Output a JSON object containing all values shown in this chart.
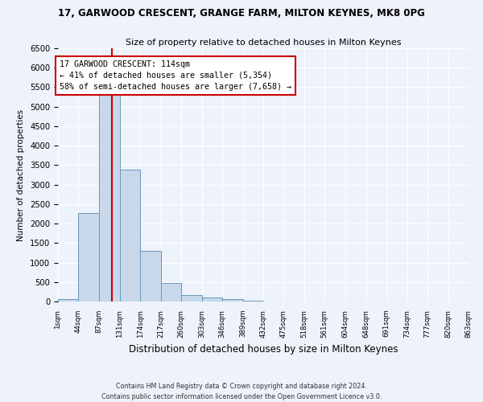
{
  "title1": "17, GARWOOD CRESCENT, GRANGE FARM, MILTON KEYNES, MK8 0PG",
  "title2": "Size of property relative to detached houses in Milton Keynes",
  "xlabel": "Distribution of detached houses by size in Milton Keynes",
  "ylabel": "Number of detached properties",
  "footer1": "Contains HM Land Registry data © Crown copyright and database right 2024.",
  "footer2": "Contains public sector information licensed under the Open Government Licence v3.0.",
  "bar_color": "#c8d8ea",
  "bar_edge_color": "#6699bb",
  "property_size": 114,
  "property_line_color": "#cc0000",
  "annotation_line1": "17 GARWOOD CRESCENT: 114sqm",
  "annotation_line2": "← 41% of detached houses are smaller (5,354)",
  "annotation_line3": "58% of semi-detached houses are larger (7,658) →",
  "annotation_box_color": "#cc0000",
  "bin_edges": [
    1,
    44,
    87,
    131,
    174,
    217,
    260,
    303,
    346,
    389,
    432,
    475,
    518,
    561,
    604,
    648,
    691,
    734,
    777,
    820,
    863
  ],
  "bar_heights": [
    70,
    2270,
    5430,
    3380,
    1310,
    480,
    165,
    95,
    55,
    20,
    5,
    2,
    2,
    0,
    0,
    0,
    0,
    0,
    0,
    0
  ],
  "ylim": [
    0,
    6500
  ],
  "yticks": [
    0,
    500,
    1000,
    1500,
    2000,
    2500,
    3000,
    3500,
    4000,
    4500,
    5000,
    5500,
    6000,
    6500
  ],
  "background_color": "#eef2fa",
  "grid_color": "#ffffff"
}
